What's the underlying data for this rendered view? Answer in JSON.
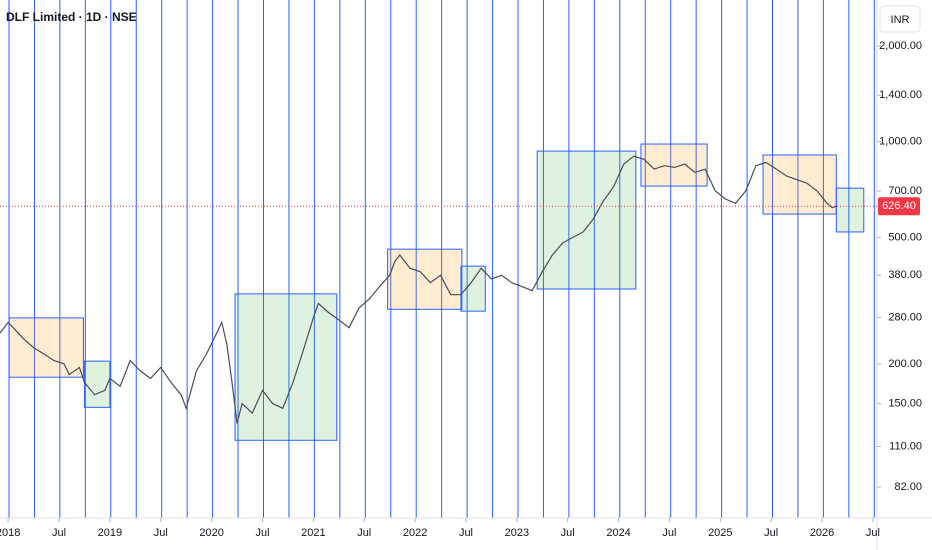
{
  "chart_data": {
    "type": "line",
    "title": "DLF Limited · 1D · NSE",
    "currency": "INR",
    "log_y": true,
    "color": "#4a4e5a",
    "ylim": [
      65.5,
      2790
    ],
    "yticks": [
      {
        "value": 82,
        "label": "82.00"
      },
      {
        "value": 110,
        "label": "110.00"
      },
      {
        "value": 150,
        "label": "150.00"
      },
      {
        "value": 200,
        "label": "200.00"
      },
      {
        "value": 280,
        "label": "280.00"
      },
      {
        "value": 380,
        "label": "380.00"
      },
      {
        "value": 500,
        "label": "500.00"
      },
      {
        "value": 700,
        "label": "700.00"
      },
      {
        "value": 1000,
        "label": "1,000.00"
      },
      {
        "value": 1400,
        "label": "1,400.00"
      },
      {
        "value": 2000,
        "label": "2,000.00"
      }
    ],
    "xlim": [
      2017.92,
      2026.54
    ],
    "xticks": [
      {
        "value": 2018.0,
        "label": "2018"
      },
      {
        "value": 2018.5,
        "label": "Jul"
      },
      {
        "value": 2019.0,
        "label": "2019"
      },
      {
        "value": 2019.5,
        "label": "Jul"
      },
      {
        "value": 2020.0,
        "label": "2020"
      },
      {
        "value": 2020.5,
        "label": "Jul"
      },
      {
        "value": 2021.0,
        "label": "2021"
      },
      {
        "value": 2021.5,
        "label": "Jul"
      },
      {
        "value": 2022.0,
        "label": "2022"
      },
      {
        "value": 2022.5,
        "label": "Jul"
      },
      {
        "value": 2023.0,
        "label": "2023"
      },
      {
        "value": 2023.5,
        "label": "Jul"
      },
      {
        "value": 2024.0,
        "label": "2024"
      },
      {
        "value": 2024.5,
        "label": "Jul"
      },
      {
        "value": 2025.0,
        "label": "2025"
      },
      {
        "value": 2025.5,
        "label": "Jul"
      },
      {
        "value": 2026.0,
        "label": "2026"
      },
      {
        "value": 2026.5,
        "label": "Jul"
      }
    ],
    "x": [
      2017.92,
      2018.0,
      2018.05,
      2018.15,
      2018.25,
      2018.35,
      2018.45,
      2018.55,
      2018.6,
      2018.7,
      2018.75,
      2018.85,
      2018.95,
      2019.0,
      2019.1,
      2019.2,
      2019.3,
      2019.4,
      2019.5,
      2019.6,
      2019.7,
      2019.75,
      2019.85,
      2019.95,
      2020.05,
      2020.1,
      2020.15,
      2020.2,
      2020.25,
      2020.3,
      2020.4,
      2020.5,
      2020.6,
      2020.7,
      2020.8,
      2020.9,
      2021.0,
      2021.05,
      2021.15,
      2021.25,
      2021.35,
      2021.45,
      2021.55,
      2021.65,
      2021.75,
      2021.8,
      2021.85,
      2021.95,
      2022.05,
      2022.15,
      2022.25,
      2022.35,
      2022.45,
      2022.55,
      2022.65,
      2022.75,
      2022.85,
      2022.95,
      2023.05,
      2023.15,
      2023.25,
      2023.35,
      2023.45,
      2023.55,
      2023.65,
      2023.75,
      2023.85,
      2023.95,
      2024.05,
      2024.15,
      2024.25,
      2024.35,
      2024.45,
      2024.55,
      2024.65,
      2024.75,
      2024.85,
      2024.95,
      2025.05,
      2025.15,
      2025.25,
      2025.35,
      2025.45,
      2025.55,
      2025.65,
      2025.75,
      2025.85,
      2025.95,
      2026.05,
      2026.1,
      2026.14
    ],
    "values": [
      250,
      270,
      260,
      240,
      225,
      215,
      205,
      200,
      185,
      195,
      175,
      160,
      165,
      180,
      170,
      205,
      190,
      180,
      195,
      175,
      160,
      145,
      190,
      215,
      250,
      270,
      230,
      175,
      130,
      150,
      140,
      165,
      150,
      145,
      175,
      220,
      280,
      310,
      290,
      275,
      260,
      300,
      320,
      350,
      380,
      420,
      440,
      400,
      390,
      360,
      380,
      330,
      330,
      360,
      400,
      370,
      380,
      360,
      350,
      340,
      390,
      440,
      480,
      500,
      520,
      570,
      650,
      720,
      850,
      900,
      880,
      820,
      840,
      830,
      850,
      800,
      820,
      700,
      660,
      640,
      700,
      840,
      860,
      820,
      780,
      760,
      740,
      700,
      640,
      620,
      626.4
    ],
    "last_price": 626.4,
    "last_price_label": "626.40",
    "zones": [
      {
        "x": [
          2018.01,
          2018.74
        ],
        "y": [
          181.6,
          279
        ],
        "color": "#ff9800"
      },
      {
        "x": [
          2018.75,
          2019.0
        ],
        "y": [
          146,
          204
        ],
        "color": "#4caf50"
      },
      {
        "x": [
          2020.23,
          2021.23
        ],
        "y": [
          115,
          332
        ],
        "color": "#4caf50"
      },
      {
        "x": [
          2021.73,
          2022.46
        ],
        "y": [
          297,
          459
        ],
        "color": "#ff9800"
      },
      {
        "x": [
          2022.45,
          2022.69
        ],
        "y": [
          293,
          406
        ],
        "color": "#4caf50"
      },
      {
        "x": [
          2023.2,
          2024.17
        ],
        "y": [
          344,
          934
        ],
        "color": "#4caf50"
      },
      {
        "x": [
          2024.22,
          2024.87
        ],
        "y": [
          725,
          983
        ],
        "color": "#ff9800"
      },
      {
        "x": [
          2025.42,
          2026.14
        ],
        "y": [
          592,
          908
        ],
        "color": "#ff9800"
      },
      {
        "x": [
          2026.14,
          2026.41
        ],
        "y": [
          520,
          714
        ],
        "color": "#4caf50"
      }
    ]
  }
}
